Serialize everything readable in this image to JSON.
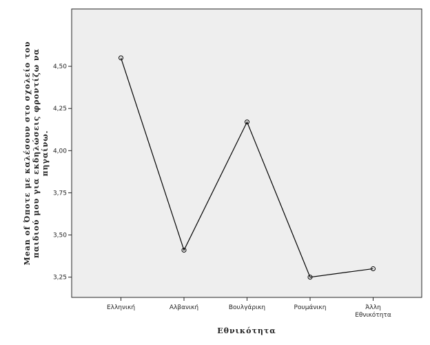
{
  "chart_data": {
    "type": "line",
    "categories": [
      "Ελληνική",
      "Αλβανική",
      "Βουλγάρικη",
      "Ρουμάνικη",
      "Άλλη Εθνικότητα"
    ],
    "category_lines": [
      [
        "Ελληνική"
      ],
      [
        "Αλβανική"
      ],
      [
        "Βουλγάρικη"
      ],
      [
        "Ρουμάνικη"
      ],
      [
        "Άλλη",
        "Εθνικότητα"
      ]
    ],
    "values": [
      4.55,
      3.41,
      4.17,
      3.25,
      3.3
    ],
    "xlabel": "Εθνικότητα",
    "ylabel_lines": [
      "Mean of Όποτε με καλέσουν στο σχολείο του",
      "παιδιού μου για εκδηλώσεις φροντίζω να",
      "πηγαίνω."
    ],
    "yticks": [
      3.25,
      3.5,
      3.75,
      4.0,
      4.25,
      4.5
    ],
    "ytick_labels": [
      "3,25",
      "3,50",
      "3,75",
      "4,00",
      "4,25",
      "4,50"
    ],
    "ylim": [
      3.13,
      4.84
    ],
    "grid": false,
    "marker": "open-circle",
    "colors": {
      "plot_bg": "#eeeeee",
      "line": "#000000",
      "page_bg": "#ffffff"
    }
  }
}
